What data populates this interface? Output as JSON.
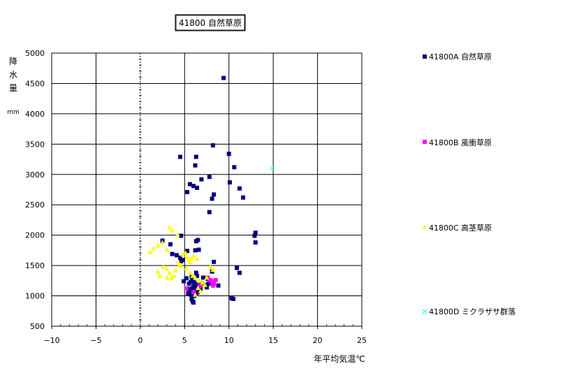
{
  "chart_data": {
    "type": "scatter",
    "title": "41800 自然草原",
    "xlabel": "年平均気温℃",
    "ylabel_chars": [
      "降",
      "水",
      "量"
    ],
    "ylabel_unit": "mm",
    "xlim": [
      -10,
      25
    ],
    "ylim": [
      500,
      5000
    ],
    "x_ticks": [
      -10,
      -5,
      0,
      5,
      10,
      15,
      20,
      25
    ],
    "y_ticks": [
      500,
      1000,
      1500,
      2000,
      2500,
      3000,
      3500,
      4000,
      4500,
      5000
    ],
    "x_tick_labels": [
      "−10",
      "−5",
      "0",
      "5",
      "10",
      "15",
      "20",
      "25"
    ],
    "y_tick_labels": [
      "500",
      "1000",
      "1500",
      "2000",
      "2500",
      "3000",
      "3500",
      "4000",
      "4500",
      "5000"
    ],
    "grid": true,
    "legend_position": "right",
    "series": [
      {
        "name": "41800A 自然草原",
        "marker": "square",
        "color": "#000080",
        "points": [
          [
            9.4,
            4590
          ],
          [
            8.2,
            3480
          ],
          [
            4.5,
            3290
          ],
          [
            6.3,
            3290
          ],
          [
            10.0,
            3340
          ],
          [
            6.2,
            3150
          ],
          [
            10.6,
            3120
          ],
          [
            7.8,
            2960
          ],
          [
            6.9,
            2920
          ],
          [
            10.1,
            2870
          ],
          [
            5.6,
            2840
          ],
          [
            6.0,
            2810
          ],
          [
            6.4,
            2780
          ],
          [
            11.2,
            2770
          ],
          [
            5.3,
            2710
          ],
          [
            8.3,
            2670
          ],
          [
            8.1,
            2600
          ],
          [
            11.6,
            2620
          ],
          [
            7.8,
            2380
          ],
          [
            13.0,
            2040
          ],
          [
            12.9,
            1990
          ],
          [
            4.6,
            1990
          ],
          [
            2.5,
            1910
          ],
          [
            6.5,
            1920
          ],
          [
            6.3,
            1900
          ],
          [
            13.0,
            1880
          ],
          [
            3.4,
            1850
          ],
          [
            6.6,
            1760
          ],
          [
            6.2,
            1750
          ],
          [
            5.3,
            1740
          ],
          [
            3.6,
            1690
          ],
          [
            4.1,
            1670
          ],
          [
            4.5,
            1630
          ],
          [
            4.8,
            1590
          ],
          [
            4.6,
            1570
          ],
          [
            8.3,
            1560
          ],
          [
            10.9,
            1460
          ],
          [
            11.2,
            1380
          ],
          [
            6.3,
            1380
          ],
          [
            8.1,
            1400
          ],
          [
            4.9,
            1240
          ],
          [
            5.2,
            1290
          ],
          [
            5.8,
            1310
          ],
          [
            6.4,
            1330
          ],
          [
            7.1,
            1300
          ],
          [
            7.6,
            1280
          ],
          [
            5.5,
            1200
          ],
          [
            5.7,
            1230
          ],
          [
            5.9,
            1250
          ],
          [
            6.1,
            1220
          ],
          [
            6.3,
            1190
          ],
          [
            6.6,
            1170
          ],
          [
            6.9,
            1210
          ],
          [
            7.3,
            1180
          ],
          [
            7.7,
            1200
          ],
          [
            8.0,
            1230
          ],
          [
            8.8,
            1170
          ],
          [
            5.3,
            1120
          ],
          [
            5.5,
            1090
          ],
          [
            5.8,
            1120
          ],
          [
            6.0,
            1150
          ],
          [
            6.2,
            1130
          ],
          [
            6.4,
            1100
          ],
          [
            6.8,
            1120
          ],
          [
            7.5,
            1140
          ],
          [
            5.4,
            1040
          ],
          [
            5.7,
            1020
          ],
          [
            5.9,
            1060
          ],
          [
            6.1,
            1000
          ],
          [
            6.3,
            1030
          ],
          [
            6.5,
            1060
          ],
          [
            5.8,
            950
          ],
          [
            5.9,
            910
          ],
          [
            6.0,
            890
          ],
          [
            10.3,
            960
          ],
          [
            10.5,
            950
          ]
        ]
      },
      {
        "name": "41800B 風衝草原",
        "marker": "square",
        "color": "#FF00FF",
        "points": [
          [
            5.2,
            1120
          ],
          [
            7.6,
            1300
          ],
          [
            7.9,
            1260
          ],
          [
            8.1,
            1240
          ],
          [
            8.3,
            1200
          ],
          [
            8.5,
            1260
          ],
          [
            8.2,
            1170
          ],
          [
            6.0,
            1060
          ],
          [
            6.7,
            1160
          ]
        ]
      },
      {
        "name": "41800C 高茎草原",
        "marker": "triangle",
        "color": "#FFFF00",
        "points": [
          [
            1.1,
            1720
          ],
          [
            1.5,
            1780
          ],
          [
            2.0,
            1830
          ],
          [
            2.5,
            1880
          ],
          [
            3.0,
            1760
          ],
          [
            3.3,
            2130
          ],
          [
            3.6,
            2080
          ],
          [
            4.2,
            2010
          ],
          [
            2.0,
            1400
          ],
          [
            2.2,
            1330
          ],
          [
            2.6,
            1480
          ],
          [
            3.0,
            1450
          ],
          [
            3.3,
            1380
          ],
          [
            3.5,
            1300
          ],
          [
            3.8,
            1330
          ],
          [
            4.0,
            1420
          ],
          [
            4.3,
            1560
          ],
          [
            4.6,
            1500
          ],
          [
            4.8,
            1680
          ],
          [
            5.1,
            1710
          ],
          [
            5.3,
            1640
          ],
          [
            5.5,
            1590
          ],
          [
            5.8,
            1620
          ],
          [
            6.0,
            1660
          ],
          [
            6.4,
            1610
          ],
          [
            5.2,
            1460
          ],
          [
            5.6,
            1380
          ],
          [
            5.9,
            1330
          ],
          [
            6.2,
            1300
          ],
          [
            6.7,
            1250
          ],
          [
            7.0,
            1220
          ],
          [
            7.3,
            1180
          ],
          [
            6.5,
            1130
          ],
          [
            6.8,
            1080
          ],
          [
            6.2,
            1020
          ],
          [
            7.9,
            1480
          ],
          [
            8.2,
            1430
          ],
          [
            3.0,
            1300
          ],
          [
            4.4,
            1510
          ],
          [
            5.6,
            1560
          ],
          [
            7.5,
            1300
          ]
        ]
      },
      {
        "name": "41800D ミクラザサ群落",
        "marker": "x",
        "color": "#00FFFF",
        "points": [
          [
            14.9,
            3100
          ]
        ]
      }
    ]
  }
}
